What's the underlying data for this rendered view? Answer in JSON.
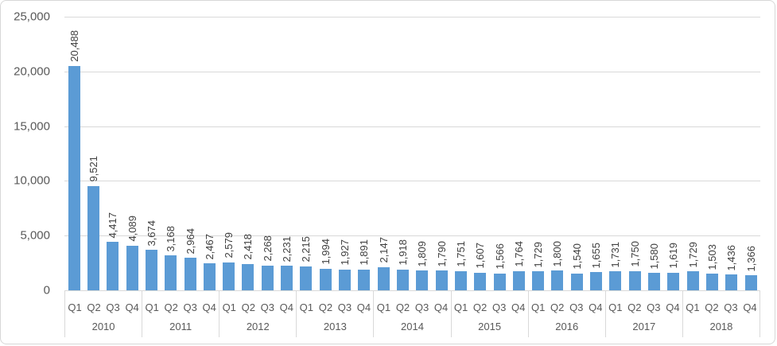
{
  "window": {
    "background_color": "#ffffff",
    "frame_border_color": "#d7d7d7"
  },
  "chart_data": {
    "type": "bar",
    "title": "",
    "xlabel": "",
    "ylabel": "",
    "legend": false,
    "grid": true,
    "ylim": [
      0,
      25000
    ],
    "y_tick_interval": 5000,
    "bar_color": "#5b9bd5",
    "gridline_color": "#d9d9d9",
    "axis_text_color": "#595959",
    "data_label_color": "#404040",
    "data_label_rotation": "vertical-bottom-to-top",
    "y_ticks": [
      {
        "value": 25000,
        "label": "25,000"
      },
      {
        "value": 20000,
        "label": "20,000"
      },
      {
        "value": 15000,
        "label": "15,000"
      },
      {
        "value": 10000,
        "label": "10,000"
      },
      {
        "value": 5000,
        "label": "5,000"
      },
      {
        "value": 0,
        "label": "0"
      }
    ],
    "quarter_labels": [
      "Q1",
      "Q2",
      "Q3",
      "Q4"
    ],
    "groups": [
      {
        "year": "2010",
        "values": [
          20488,
          9521,
          4417,
          4089
        ],
        "labels": [
          "20,488",
          "9,521",
          "4,417",
          "4,089"
        ]
      },
      {
        "year": "2011",
        "values": [
          3674,
          3168,
          2964,
          2467
        ],
        "labels": [
          "3,674",
          "3,168",
          "2,964",
          "2,467"
        ]
      },
      {
        "year": "2012",
        "values": [
          2579,
          2418,
          2268,
          2231
        ],
        "labels": [
          "2,579",
          "2,418",
          "2,268",
          "2,231"
        ]
      },
      {
        "year": "2013",
        "values": [
          2215,
          1994,
          1927,
          1891
        ],
        "labels": [
          "2,215",
          "1,994",
          "1,927",
          "1,891"
        ]
      },
      {
        "year": "2014",
        "values": [
          2147,
          1918,
          1809,
          1790
        ],
        "labels": [
          "2,147",
          "1,918",
          "1,809",
          "1,790"
        ]
      },
      {
        "year": "2015",
        "values": [
          1751,
          1607,
          1566,
          1764
        ],
        "labels": [
          "1,751",
          "1,607",
          "1,566",
          "1,764"
        ]
      },
      {
        "year": "2016",
        "values": [
          1729,
          1800,
          1540,
          1655
        ],
        "labels": [
          "1,729",
          "1,800",
          "1,540",
          "1,655"
        ]
      },
      {
        "year": "2017",
        "values": [
          1731,
          1750,
          1580,
          1619
        ],
        "labels": [
          "1,731",
          "1,750",
          "1,580",
          "1,619"
        ]
      },
      {
        "year": "2018",
        "values": [
          1729,
          1503,
          1436,
          1366
        ],
        "labels": [
          "1,729",
          "1,503",
          "1,436",
          "1,366"
        ]
      }
    ]
  }
}
